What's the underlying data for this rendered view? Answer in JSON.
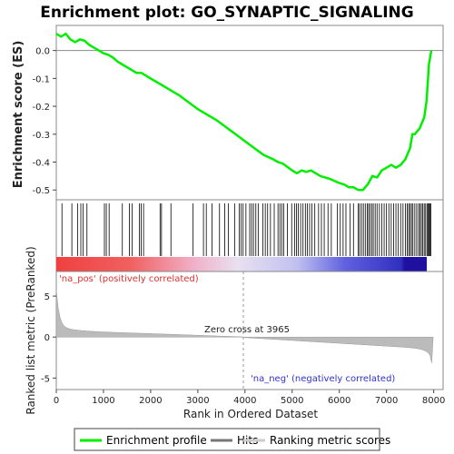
{
  "chart_data": {
    "type": "line",
    "title": "Enrichment plot: GO_SYNAPTIC_SIGNALING",
    "xlabel": "Rank in Ordered Dataset",
    "ylabel_es": "Enrichment score (ES)",
    "ylabel_metric": "Ranked list metric (PreRanked)",
    "xlim": [
      0,
      8200
    ],
    "x_ticks": [
      0,
      1000,
      2000,
      3000,
      4000,
      5000,
      6000,
      7000,
      8000
    ],
    "es_ylim": [
      -0.535,
      0.09
    ],
    "es_ticks": [
      0.0,
      -0.1,
      -0.2,
      -0.3,
      -0.4,
      -0.5
    ],
    "metric_ylim": [
      -6.4,
      8
    ],
    "metric_ticks": [
      5,
      0,
      -5
    ],
    "zero_cross_label": "Zero cross at 3965",
    "zero_cross_rank": 3965,
    "pos_label": "'na_pos' (positively correlated)",
    "neg_label": "'na_neg' (negatively correlated)",
    "legend": [
      {
        "label": "Enrichment profile",
        "color": "#00ee00"
      },
      {
        "label": "Hits",
        "color": "#777777"
      },
      {
        "label": "Ranking metric scores",
        "color": "#cccccc"
      }
    ],
    "series": [
      {
        "name": "Enrichment profile",
        "color": "#00ee00",
        "x": [
          0,
          100,
          200,
          300,
          400,
          500,
          600,
          700,
          800,
          900,
          1000,
          1100,
          1200,
          1300,
          1400,
          1500,
          1600,
          1700,
          1800,
          1900,
          2000,
          2200,
          2400,
          2600,
          2800,
          3000,
          3200,
          3400,
          3600,
          3800,
          4000,
          4200,
          4400,
          4600,
          4700,
          4800,
          5000,
          5100,
          5200,
          5300,
          5400,
          5500,
          5600,
          5800,
          6000,
          6100,
          6200,
          6300,
          6400,
          6500,
          6600,
          6650,
          6700,
          6800,
          6900,
          7000,
          7100,
          7200,
          7300,
          7400,
          7500,
          7550,
          7600,
          7650,
          7700,
          7750,
          7800,
          7850,
          7900,
          7950
        ],
        "values": [
          0.06,
          0.05,
          0.06,
          0.04,
          0.03,
          0.04,
          0.035,
          0.02,
          0.01,
          0.0,
          -0.01,
          -0.015,
          -0.025,
          -0.04,
          -0.05,
          -0.06,
          -0.07,
          -0.08,
          -0.08,
          -0.09,
          -0.1,
          -0.12,
          -0.14,
          -0.16,
          -0.185,
          -0.21,
          -0.23,
          -0.25,
          -0.275,
          -0.3,
          -0.325,
          -0.35,
          -0.375,
          -0.39,
          -0.4,
          -0.405,
          -0.43,
          -0.44,
          -0.43,
          -0.435,
          -0.43,
          -0.44,
          -0.45,
          -0.46,
          -0.475,
          -0.48,
          -0.49,
          -0.49,
          -0.5,
          -0.5,
          -0.48,
          -0.465,
          -0.45,
          -0.455,
          -0.43,
          -0.42,
          -0.41,
          -0.42,
          -0.41,
          -0.39,
          -0.35,
          -0.3,
          -0.3,
          -0.29,
          -0.28,
          -0.26,
          -0.24,
          -0.18,
          -0.05,
          0.0
        ]
      }
    ],
    "hit_ranks": [
      120,
      330,
      450,
      520,
      570,
      650,
      1020,
      1060,
      1120,
      1400,
      1550,
      1610,
      1760,
      1800,
      1850,
      2200,
      2230,
      2430,
      2900,
      3120,
      3180,
      3300,
      3460,
      3570,
      3650,
      3780,
      3880,
      3920,
      3960,
      4020,
      4100,
      4140,
      4180,
      4230,
      4280,
      4380,
      4430,
      4480,
      4540,
      4620,
      4700,
      4740,
      4780,
      4820,
      4900,
      4990,
      5050,
      5090,
      5130,
      5180,
      5230,
      5280,
      5320,
      5370,
      5420,
      5480,
      5560,
      5620,
      5680,
      5760,
      5830,
      5960,
      6020,
      6080,
      6140,
      6230,
      6300,
      6400,
      6430,
      6470,
      6510,
      6550,
      6590,
      6620,
      6650,
      6690,
      6720,
      6760,
      6800,
      6850,
      6900,
      6950,
      7000,
      7050,
      7100,
      7150,
      7200,
      7250,
      7300,
      7350,
      7400,
      7440,
      7470,
      7500,
      7530,
      7560,
      7600,
      7640,
      7680,
      7710,
      7740,
      7770,
      7800,
      7830,
      7860,
      7880,
      7900,
      7920,
      7940
    ]
  }
}
